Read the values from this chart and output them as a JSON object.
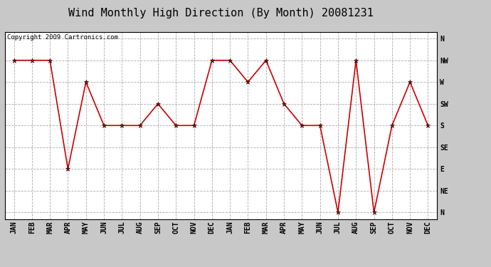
{
  "title": "Wind Monthly High Direction (By Month) 20081231",
  "copyright_text": "Copyright 2009 Cartronics.com",
  "x_labels": [
    "JAN",
    "FEB",
    "MAR",
    "APR",
    "MAY",
    "JUN",
    "JUL",
    "AUG",
    "SEP",
    "OCT",
    "NOV",
    "DEC",
    "JAN",
    "FEB",
    "MAR",
    "APR",
    "MAY",
    "JUN",
    "JUL",
    "AUG",
    "SEP",
    "OCT",
    "NOV",
    "DEC"
  ],
  "y_labels": [
    "N",
    "NE",
    "E",
    "SE",
    "S",
    "SW",
    "W",
    "NW",
    "N"
  ],
  "y_values": [
    0,
    1,
    2,
    3,
    4,
    5,
    6,
    7,
    8
  ],
  "data_values": [
    7,
    7,
    7,
    2,
    6,
    4,
    4,
    4,
    5,
    4,
    4,
    7,
    7,
    6,
    7,
    5,
    4,
    4,
    0,
    7,
    0,
    4,
    6,
    4
  ],
  "line_color": "#cc0000",
  "bg_color": "#c8c8c8",
  "plot_bg": "#ffffff",
  "grid_color": "#aaaaaa",
  "title_fontsize": 11,
  "label_fontsize": 7,
  "copyright_fontsize": 6.5
}
